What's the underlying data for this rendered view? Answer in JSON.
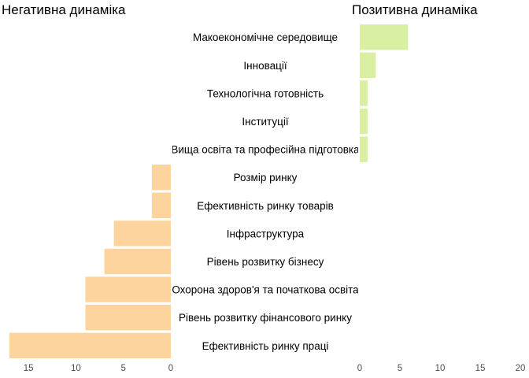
{
  "chart_data": [
    {
      "type": "bar",
      "orientation": "horizontal",
      "title": "Негативна динаміка",
      "categories": [
        "Макоекономічне середовище",
        "Інновації",
        "Технологічна готовність",
        "Інституції",
        "Вища освіта та професійна підготовка",
        "Розмір ринку",
        "Ефективність ринку товарів",
        "Інфраструктура",
        "Рівень розвитку бізнесу",
        "Охорона здоров'я та початкова освіта",
        "Рівень розвитку фінансового ринку",
        "Ефективність ринку праці"
      ],
      "values": [
        0,
        0,
        0,
        0,
        0,
        2,
        2,
        6,
        7,
        9,
        9,
        17
      ],
      "xlim": [
        0,
        17
      ],
      "x_reversed": true,
      "xticks": [
        "15",
        "10",
        "5",
        "0"
      ],
      "color": "#fdd49e"
    },
    {
      "type": "bar",
      "orientation": "horizontal",
      "title": "Позитивна динаміка",
      "categories": [
        "Макоекономічне середовище",
        "Інновації",
        "Технологічна готовність",
        "Інституції",
        "Вища освіта та професійна підготовка",
        "Розмір ринку",
        "Ефективність ринку товарів",
        "Інфраструктура",
        "Рівень розвитку бізнесу",
        "Охорона здоров'я та початкова освіта",
        "Рівень розвитку фінансового ринку",
        "Ефективність ринку праці"
      ],
      "values": [
        6,
        2,
        1,
        1,
        1,
        0,
        0,
        0,
        0,
        0,
        0,
        0
      ],
      "xlim": [
        0,
        20
      ],
      "xticks": [
        "0",
        "5",
        "10",
        "15",
        "20"
      ],
      "color": "#d9f0a3"
    }
  ]
}
